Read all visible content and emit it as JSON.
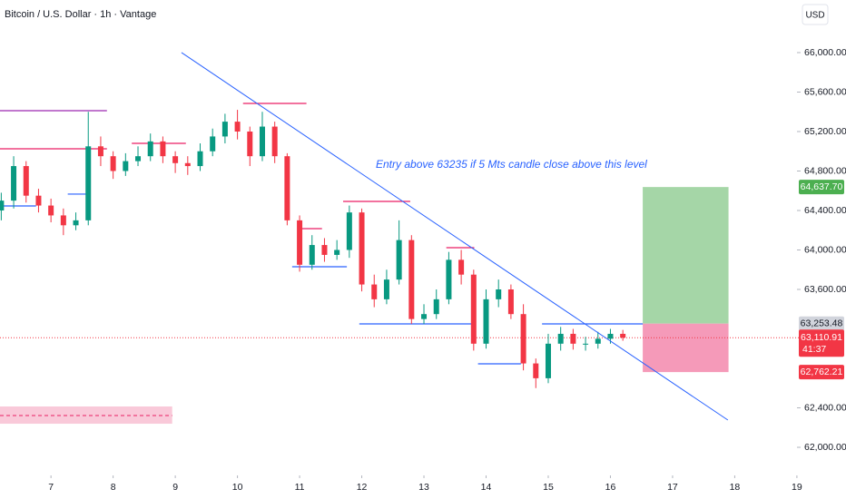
{
  "chart_data": {
    "type": "candlestick",
    "title": "Bitcoin / U.S. Dollar · 1h · Vantage",
    "currency": "USD",
    "annotation": "Entry above 63235 if 5 Mts candle close above this level",
    "up_color": "#089981",
    "down_color": "#f23645",
    "x": [
      6.2,
      6.4,
      6.6,
      6.8,
      7.0,
      7.2,
      7.4,
      7.6,
      7.8,
      8.0,
      8.2,
      8.4,
      8.6,
      8.8,
      9.0,
      9.2,
      9.4,
      9.6,
      9.8,
      10.0,
      10.2,
      10.4,
      10.6,
      10.8,
      11.0,
      11.2,
      11.4,
      11.6,
      11.8,
      12.0,
      12.2,
      12.4,
      12.6,
      12.8,
      13.0,
      13.2,
      13.4,
      13.6,
      13.8,
      14.0,
      14.2,
      14.4,
      14.6,
      14.8,
      15.0,
      15.2,
      15.4,
      15.6,
      15.8,
      16.0,
      16.2
    ],
    "open": [
      64400,
      64500,
      64850,
      64550,
      64450,
      64350,
      64250,
      64300,
      65050,
      64950,
      64800,
      64900,
      64950,
      65100,
      64950,
      64880,
      64850,
      65000,
      65150,
      65300,
      65200,
      64950,
      65250,
      64950,
      64300,
      63850,
      64050,
      63950,
      64000,
      64380,
      63650,
      63500,
      63700,
      64100,
      63300,
      63350,
      63500,
      63900,
      63750,
      63050,
      63500,
      63600,
      63350,
      62850,
      62700,
      63050,
      63150,
      63050,
      63050,
      63100,
      63150
    ],
    "high": [
      64580,
      64950,
      64900,
      64620,
      64520,
      64420,
      64380,
      65400,
      65150,
      65000,
      64980,
      65050,
      65180,
      65150,
      65000,
      64950,
      65080,
      65230,
      65380,
      65420,
      65250,
      65400,
      65300,
      64980,
      64350,
      64150,
      64120,
      64100,
      64450,
      64420,
      63750,
      63800,
      64300,
      64150,
      63450,
      63600,
      63980,
      64000,
      63800,
      63600,
      63700,
      63650,
      63450,
      62900,
      63150,
      63220,
      63200,
      63120,
      63170,
      63200,
      63190
    ],
    "low": [
      64300,
      64420,
      64480,
      64380,
      64280,
      64150,
      64200,
      64250,
      64850,
      64720,
      64750,
      64850,
      64900,
      64880,
      64780,
      64760,
      64800,
      64950,
      65080,
      65120,
      64850,
      64900,
      64880,
      64250,
      63780,
      63800,
      63880,
      63900,
      63920,
      63580,
      63420,
      63450,
      63650,
      63250,
      63250,
      63300,
      63450,
      63650,
      62980,
      63000,
      63420,
      63300,
      62780,
      62600,
      62650,
      62980,
      62990,
      62980,
      63000,
      63050,
      63080
    ],
    "close": [
      64500,
      64850,
      64550,
      64450,
      64350,
      64250,
      64300,
      65050,
      64950,
      64800,
      64900,
      64950,
      65100,
      64950,
      64880,
      64850,
      65000,
      65150,
      65300,
      65200,
      64950,
      65250,
      64950,
      64300,
      63850,
      64050,
      63950,
      64000,
      64380,
      63650,
      63500,
      63700,
      64100,
      63300,
      63350,
      63500,
      63900,
      63750,
      63050,
      63500,
      63600,
      63350,
      62850,
      62700,
      63050,
      63150,
      63050,
      63050,
      63100,
      63150,
      63110.91
    ],
    "xlim": [
      6.18,
      19.79
    ],
    "ylim": [
      61752,
      66533
    ],
    "xticks": [
      7,
      8,
      9,
      10,
      11,
      12,
      13,
      14,
      15,
      16,
      17,
      18,
      19
    ],
    "yticks": [
      {
        "value": 62000,
        "label": "62,000.00"
      },
      {
        "value": 62400,
        "label": "62,400.00"
      },
      {
        "value": 63600,
        "label": "63,600.00"
      },
      {
        "value": 64000,
        "label": "64,000.00"
      },
      {
        "value": 64400,
        "label": "64,400.00"
      },
      {
        "value": 64800,
        "label": "64,800.00"
      },
      {
        "value": 65200,
        "label": "65,200.00"
      },
      {
        "value": 65600,
        "label": "65,600.00"
      },
      {
        "value": 66000,
        "label": "66,000.00"
      }
    ],
    "trendline": {
      "x": [
        9.1,
        17.89
      ],
      "y": [
        66000,
        62276
      ],
      "color": "#2962ff"
    },
    "levels": [
      {
        "x": [
          6.18,
          7.9
        ],
        "y": 65411,
        "color": "#9c27b0"
      },
      {
        "x": [
          6.18,
          7.9
        ],
        "y": 65025,
        "color": "#e91e63"
      },
      {
        "x": [
          8.3,
          9.17
        ],
        "y": 65080,
        "color": "#e91e63"
      },
      {
        "x": [
          6.18,
          6.76
        ],
        "y": 64446,
        "color": "#2962ff"
      },
      {
        "x": [
          7.27,
          7.64
        ],
        "y": 64566,
        "color": "#2962ff"
      },
      {
        "x": [
          10.09,
          11.11
        ],
        "y": 65485,
        "color": "#e91e63"
      },
      {
        "x": [
          11.04,
          11.36
        ],
        "y": 64216,
        "color": "#e91e63"
      },
      {
        "x": [
          10.88,
          11.76
        ],
        "y": 63830,
        "color": "#2962ff"
      },
      {
        "x": [
          11.7,
          12.78
        ],
        "y": 64492,
        "color": "#e91e63"
      },
      {
        "x": [
          11.96,
          13.81
        ],
        "y": 63251,
        "color": "#2962ff"
      },
      {
        "x": [
          13.36,
          13.81
        ],
        "y": 64023,
        "color": "#e91e63"
      },
      {
        "x": [
          13.87,
          14.56
        ],
        "y": 62846,
        "color": "#2962ff"
      },
      {
        "x": [
          14.9,
          16.52
        ],
        "y": 63251,
        "color": "#2962ff"
      }
    ],
    "zone": {
      "x": [
        6.18,
        8.95
      ],
      "y": [
        62414,
        62239
      ],
      "mid": 62322
    },
    "position": {
      "x": [
        16.52,
        17.9
      ]
    },
    "price_labels": [
      {
        "value": 64637.7,
        "label": "64,637.70",
        "color": "#4caf50"
      },
      {
        "value": 63253.48,
        "label": "63,253.48",
        "color": "#d1d4dc"
      },
      {
        "value": 63110.91,
        "label": "63,110.91",
        "color": "#f23645"
      },
      {
        "value": 62762.21,
        "label": "62,762.21",
        "color": "#f23645"
      }
    ],
    "countdown": "41:37"
  }
}
